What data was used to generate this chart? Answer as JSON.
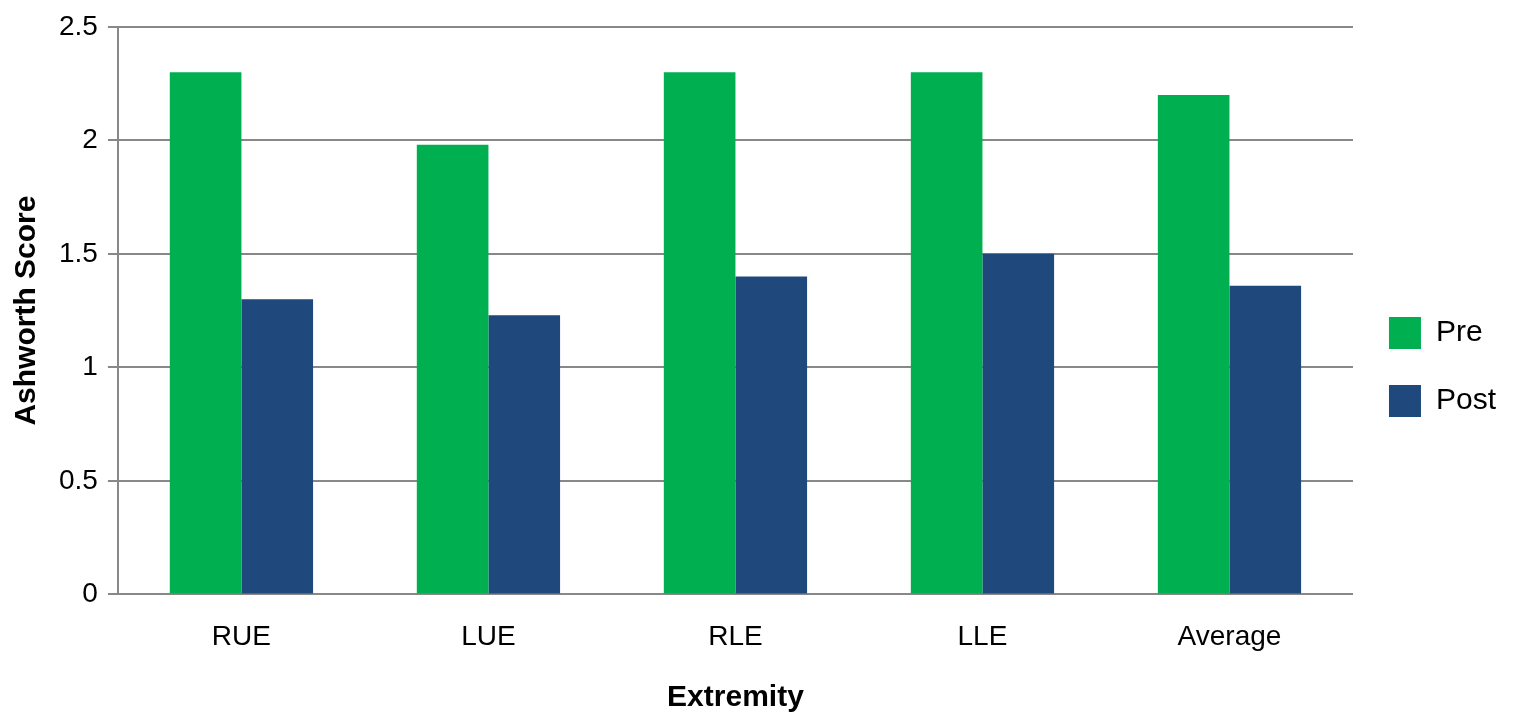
{
  "chart_data": {
    "type": "bar",
    "xlabel": "Extremity",
    "ylabel": "Ashworth Score",
    "categories": [
      "RUE",
      "LUE",
      "RLE",
      "LLE",
      "Average"
    ],
    "series": [
      {
        "name": "Pre",
        "color": "#00b050",
        "values": [
          2.3,
          1.98,
          2.3,
          2.3,
          2.2
        ]
      },
      {
        "name": "Post",
        "color": "#1f497d",
        "values": [
          1.3,
          1.23,
          1.4,
          1.5,
          1.36
        ]
      }
    ],
    "ylim": [
      0,
      2.5
    ],
    "yticks": [
      0,
      0.5,
      1,
      1.5,
      2,
      2.5
    ],
    "grid": "y",
    "legend": "right"
  }
}
